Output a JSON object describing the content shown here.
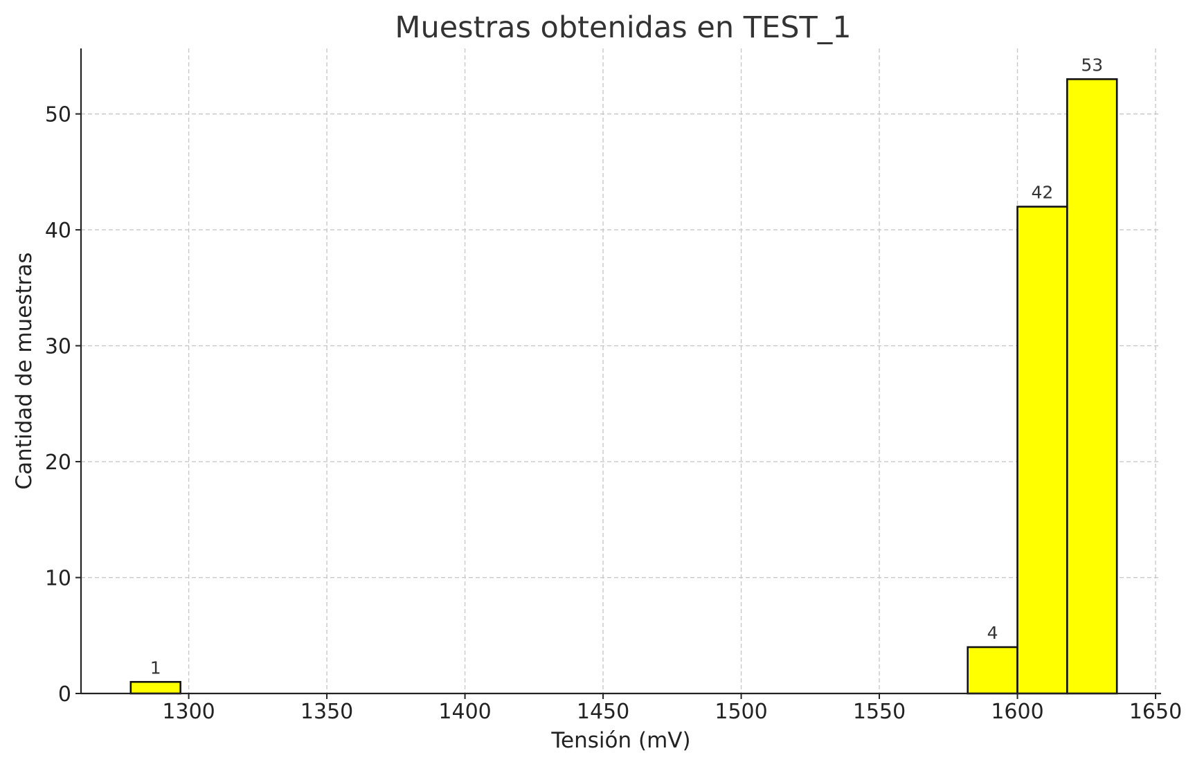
{
  "chart_data": {
    "type": "bar",
    "title": "Muestras obtenidas en TEST_1",
    "xlabel": "Tensión (mV)",
    "ylabel": "Cantidad de muestras",
    "xlim": [
      1261,
      1652
    ],
    "ylim": [
      0,
      55.65
    ],
    "x_ticks": [
      1300,
      1350,
      1400,
      1450,
      1500,
      1550,
      1600,
      1650
    ],
    "y_ticks": [
      0,
      10,
      20,
      30,
      40,
      50
    ],
    "grid": true,
    "bar_color": "#ffff00",
    "edge_color": "#111111",
    "bins": [
      {
        "x0": 1279,
        "x1": 1297,
        "count": 1,
        "label": "1"
      },
      {
        "x0": 1582,
        "x1": 1600,
        "count": 4,
        "label": "4"
      },
      {
        "x0": 1600,
        "x1": 1618,
        "count": 42,
        "label": "42"
      },
      {
        "x0": 1618,
        "x1": 1636,
        "count": 53,
        "label": "53"
      }
    ]
  }
}
